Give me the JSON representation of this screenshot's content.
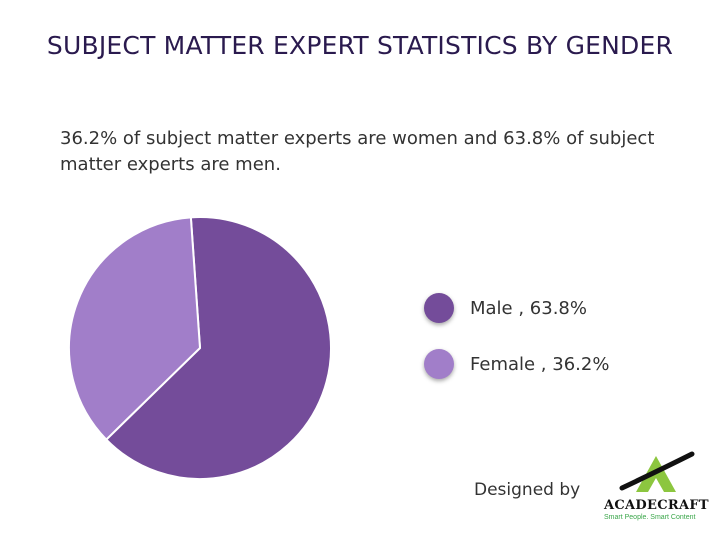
{
  "title": "SUBJECT MATTER EXPERT STATISTICS BY GENDER",
  "subtitle": "36.2% of subject matter experts are women and 63.8% of subject matter experts are men.",
  "chart_data": {
    "type": "pie",
    "title": "",
    "slices": [
      {
        "label": "Male",
        "value": 63.8,
        "legend": "Male , 63.8%",
        "color": "#744c9a"
      },
      {
        "label": "Female",
        "value": 36.2,
        "legend": "Female , 36.2%",
        "color": "#a17ec9"
      }
    ],
    "legend_position": "right"
  },
  "footer": {
    "credit": "Designed by",
    "logo_name": "ACADECRAFT",
    "logo_tagline": "Smart People. Smart Content",
    "logo_colors": {
      "accent": "#8cc63f",
      "dark": "#111111",
      "tagline": "#3aa64a"
    }
  }
}
